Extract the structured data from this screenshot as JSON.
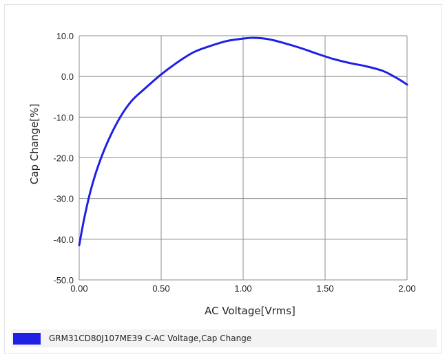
{
  "chart_data": {
    "type": "line",
    "xlabel": "AC Voltage[Vrms]",
    "ylabel": "Cap Change[%]",
    "xlim": [
      0.0,
      2.0
    ],
    "ylim": [
      -50.0,
      10.0
    ],
    "x_ticks": [
      "0.00",
      "0.50",
      "1.00",
      "1.50",
      "2.00"
    ],
    "y_ticks": [
      "10.0",
      "0.0",
      "-10.0",
      "-20.0",
      "-30.0",
      "-40.0",
      "-50.0"
    ],
    "x_tick_values": [
      0.0,
      0.5,
      1.0,
      1.5,
      2.0
    ],
    "y_tick_values": [
      10.0,
      0.0,
      -10.0,
      -20.0,
      -30.0,
      -40.0,
      -50.0
    ],
    "grid": true,
    "legend_position": "bottom",
    "series": [
      {
        "name": "GRM31CD80J107ME39 C-AC Voltage,Cap Change",
        "color": "#1f1fe6",
        "x": [
          0.0,
          0.03,
          0.07,
          0.12,
          0.18,
          0.25,
          0.32,
          0.4,
          0.5,
          0.6,
          0.7,
          0.8,
          0.9,
          1.0,
          1.06,
          1.15,
          1.25,
          1.35,
          1.45,
          1.55,
          1.65,
          1.75,
          1.85,
          1.92,
          1.97,
          2.0
        ],
        "y": [
          -41.5,
          -35.0,
          -28.0,
          -21.5,
          -15.5,
          -10.0,
          -6.0,
          -3.0,
          0.5,
          3.5,
          6.0,
          7.5,
          8.7,
          9.3,
          9.5,
          9.2,
          8.2,
          7.0,
          5.6,
          4.3,
          3.3,
          2.5,
          1.4,
          0.0,
          -1.2,
          -2.0
        ]
      }
    ]
  }
}
